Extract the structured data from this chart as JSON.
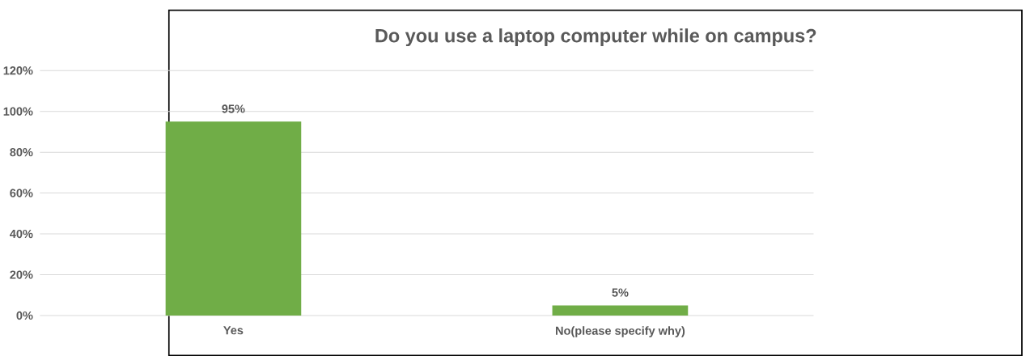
{
  "chart_data": {
    "type": "bar",
    "title": "Do you use a laptop computer while on campus?",
    "categories": [
      "Yes",
      "No(please specify why)"
    ],
    "values": [
      95,
      5
    ],
    "value_labels": [
      "95%",
      "5%"
    ],
    "color": "#70ad47",
    "ylim": [
      0,
      120
    ],
    "yticks": [
      {
        "value": 0,
        "label": "0%"
      },
      {
        "value": 20,
        "label": "20%"
      },
      {
        "value": 40,
        "label": "40%"
      },
      {
        "value": 60,
        "label": "60%"
      },
      {
        "value": 80,
        "label": "80%"
      },
      {
        "value": 100,
        "label": "100%"
      },
      {
        "value": 120,
        "label": "120%"
      }
    ],
    "grid": "y"
  }
}
